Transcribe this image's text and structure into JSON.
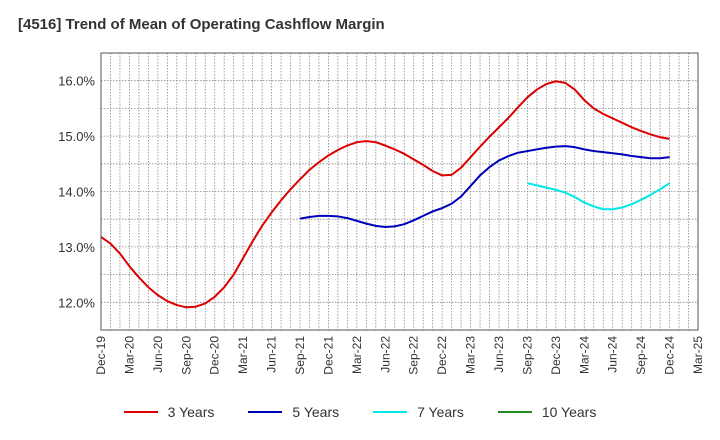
{
  "title": "[4516]  Trend of Mean of Operating Cashflow Margin",
  "chart_data": {
    "type": "line",
    "title": "[4516]  Trend of Mean of Operating Cashflow Margin",
    "xlabel": "",
    "ylabel": "",
    "x_ticks": [
      "Dec-19",
      "Mar-20",
      "Jun-20",
      "Sep-20",
      "Dec-20",
      "Mar-21",
      "Jun-21",
      "Sep-21",
      "Dec-21",
      "Mar-22",
      "Jun-22",
      "Sep-22",
      "Dec-22",
      "Mar-23",
      "Jun-23",
      "Sep-23",
      "Dec-23",
      "Mar-24",
      "Jun-24",
      "Sep-24",
      "Dec-24",
      "Mar-25"
    ],
    "y_ticks": [
      "12.0%",
      "13.0%",
      "14.0%",
      "15.0%",
      "16.0%"
    ],
    "ylim": [
      11.5,
      16.5
    ],
    "grid": true,
    "legend_position": "bottom",
    "series": [
      {
        "name": "3 Years",
        "color": "#dd0000",
        "x": [
          "2019-12",
          "2020-01",
          "2020-02",
          "2020-03",
          "2020-04",
          "2020-05",
          "2020-06",
          "2020-07",
          "2020-08",
          "2020-09",
          "2020-10",
          "2020-11",
          "2020-12",
          "2021-01",
          "2021-02",
          "2021-03",
          "2021-04",
          "2021-05",
          "2021-06",
          "2021-07",
          "2021-08",
          "2021-09",
          "2021-10",
          "2021-11",
          "2021-12",
          "2022-01",
          "2022-02",
          "2022-03",
          "2022-04",
          "2022-05",
          "2022-06",
          "2022-07",
          "2022-08",
          "2022-09",
          "2022-10",
          "2022-11",
          "2022-12",
          "2023-01",
          "2023-02",
          "2023-03",
          "2023-04",
          "2023-05",
          "2023-06",
          "2023-07",
          "2023-08",
          "2023-09",
          "2023-10",
          "2023-11",
          "2023-12",
          "2024-01",
          "2024-02",
          "2024-03",
          "2024-04",
          "2024-05",
          "2024-06",
          "2024-07",
          "2024-08",
          "2024-09",
          "2024-10",
          "2024-11",
          "2024-12"
        ],
        "values": [
          13.18,
          13.06,
          12.88,
          12.65,
          12.45,
          12.27,
          12.13,
          12.02,
          11.95,
          11.91,
          11.92,
          11.98,
          12.1,
          12.27,
          12.5,
          12.8,
          13.1,
          13.38,
          13.62,
          13.84,
          14.04,
          14.22,
          14.39,
          14.53,
          14.65,
          14.75,
          14.83,
          14.89,
          14.91,
          14.89,
          14.83,
          14.76,
          14.68,
          14.58,
          14.48,
          14.37,
          14.29,
          14.3,
          14.43,
          14.62,
          14.81,
          14.99,
          15.16,
          15.33,
          15.52,
          15.7,
          15.84,
          15.94,
          15.99,
          15.96,
          15.84,
          15.65,
          15.5,
          15.4,
          15.32,
          15.24,
          15.16,
          15.09,
          15.03,
          14.98,
          14.95
        ]
      },
      {
        "name": "5 Years",
        "color": "#0000bb",
        "x": [
          "2021-09",
          "2021-10",
          "2021-11",
          "2021-12",
          "2022-01",
          "2022-02",
          "2022-03",
          "2022-04",
          "2022-05",
          "2022-06",
          "2022-07",
          "2022-08",
          "2022-09",
          "2022-10",
          "2022-11",
          "2022-12",
          "2023-01",
          "2023-02",
          "2023-03",
          "2023-04",
          "2023-05",
          "2023-06",
          "2023-07",
          "2023-08",
          "2023-09",
          "2023-10",
          "2023-11",
          "2023-12",
          "2024-01",
          "2024-02",
          "2024-03",
          "2024-04",
          "2024-05",
          "2024-06",
          "2024-07",
          "2024-08",
          "2024-09",
          "2024-10",
          "2024-11",
          "2024-12"
        ],
        "values": [
          13.51,
          13.54,
          13.56,
          13.56,
          13.55,
          13.52,
          13.47,
          13.42,
          13.38,
          13.36,
          13.37,
          13.41,
          13.48,
          13.56,
          13.64,
          13.7,
          13.78,
          13.91,
          14.1,
          14.29,
          14.44,
          14.56,
          14.64,
          14.7,
          14.73,
          14.76,
          14.79,
          14.81,
          14.82,
          14.8,
          14.76,
          14.73,
          14.71,
          14.69,
          14.67,
          14.64,
          14.62,
          14.6,
          14.6,
          14.62
        ]
      },
      {
        "name": "7 Years",
        "color": "#00e8e8",
        "x": [
          "2023-09",
          "2023-10",
          "2023-11",
          "2023-12",
          "2024-01",
          "2024-02",
          "2024-03",
          "2024-04",
          "2024-05",
          "2024-06",
          "2024-07",
          "2024-08",
          "2024-09",
          "2024-10",
          "2024-11",
          "2024-12"
        ],
        "values": [
          14.15,
          14.11,
          14.07,
          14.03,
          13.98,
          13.9,
          13.8,
          13.73,
          13.68,
          13.68,
          13.71,
          13.77,
          13.85,
          13.94,
          14.04,
          14.15
        ]
      },
      {
        "name": "10 Years",
        "color": "#228B22",
        "x": [],
        "values": []
      }
    ]
  }
}
